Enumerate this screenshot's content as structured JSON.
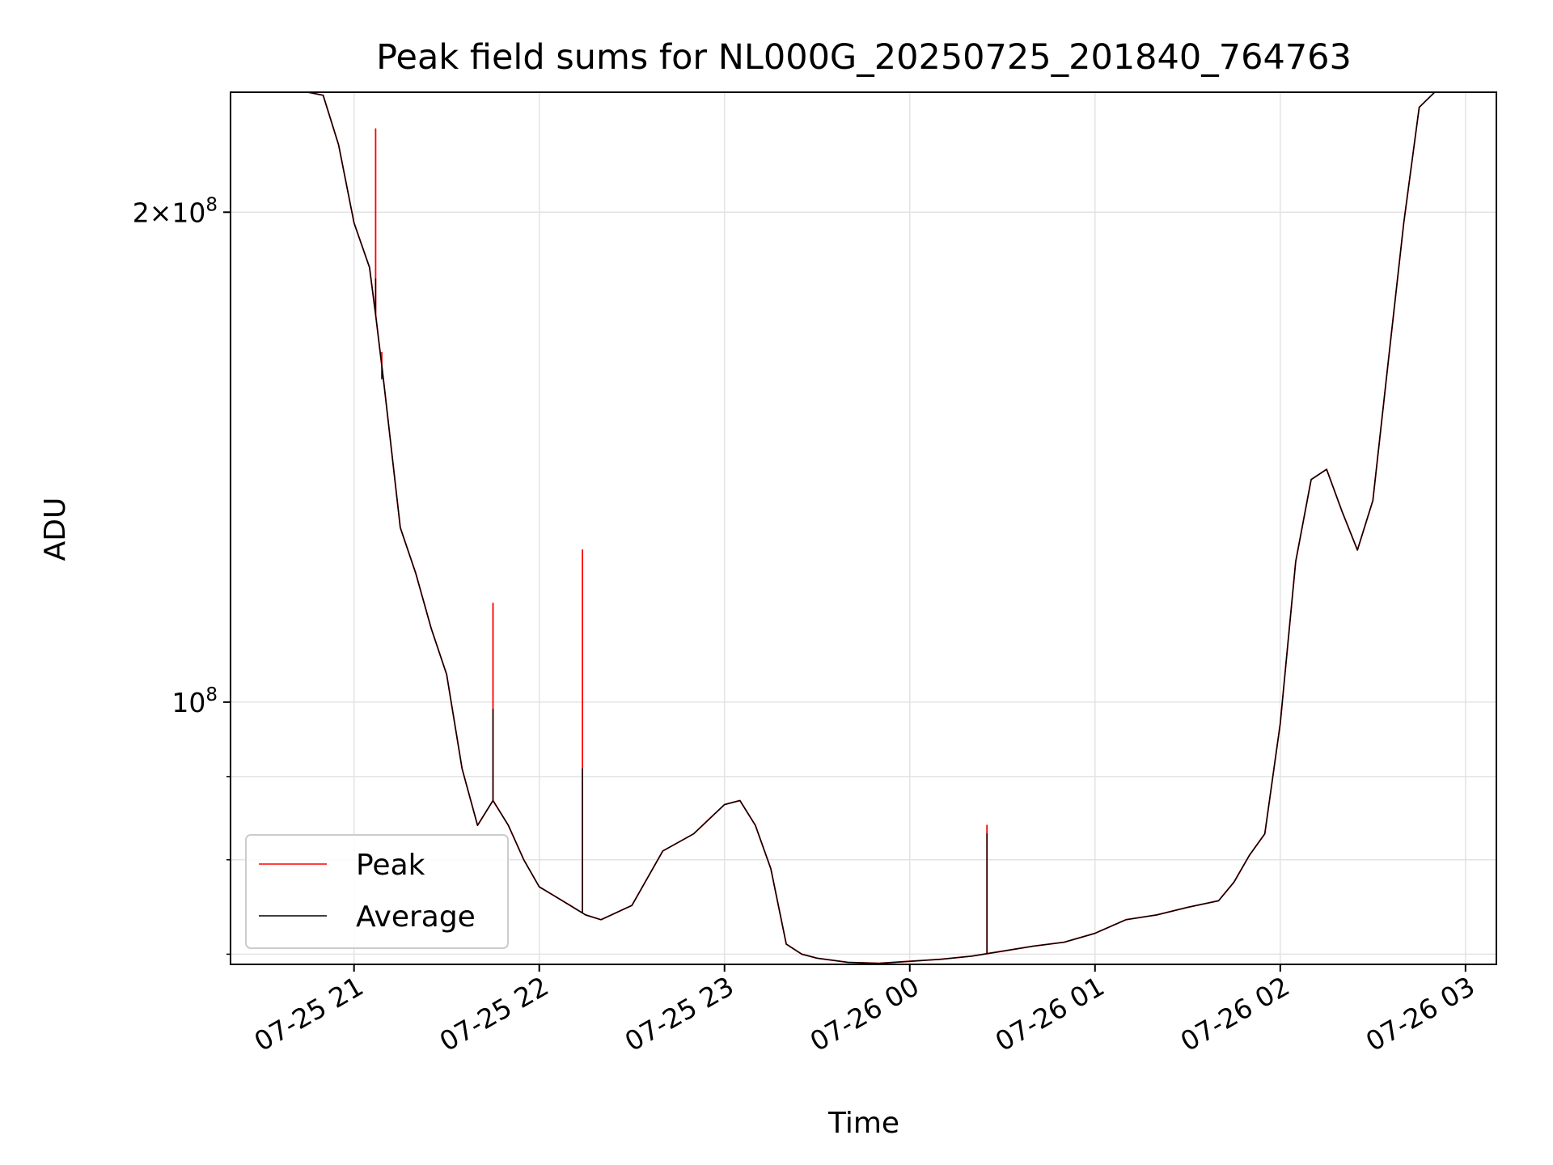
{
  "chart_data": {
    "type": "line",
    "title": "Peak field sums for NL000G_20250725_201840_764763",
    "xlabel": "Time",
    "ylabel": "ADU",
    "y_scale": "log",
    "xlim": [
      "2025-07-25T20:20",
      "2025-07-26T03:10"
    ],
    "ylim": [
      69000000,
      237000000
    ],
    "grid": true,
    "legend_position": "lower-left",
    "x_ticks": [
      {
        "value": "2025-07-25T21:00",
        "label": "07-25 21"
      },
      {
        "value": "2025-07-25T22:00",
        "label": "07-25 22"
      },
      {
        "value": "2025-07-25T23:00",
        "label": "07-25 23"
      },
      {
        "value": "2025-07-26T00:00",
        "label": "07-26 00"
      },
      {
        "value": "2025-07-26T01:00",
        "label": "07-26 01"
      },
      {
        "value": "2025-07-26T02:00",
        "label": "07-26 02"
      },
      {
        "value": "2025-07-26T03:00",
        "label": "07-26 03"
      }
    ],
    "y_ticks": [
      {
        "value": 200000000,
        "mantissa": "2",
        "times": "×",
        "base": "10",
        "exponent": "8"
      },
      {
        "value": 100000000,
        "mantissa": "",
        "times": "",
        "base": "10",
        "exponent": "8"
      }
    ],
    "y_minor_ticks": [
      70000000,
      80000000,
      90000000
    ],
    "x": [
      "2025-07-25T20:45",
      "2025-07-25T20:50",
      "2025-07-25T20:55",
      "2025-07-25T21:00",
      "2025-07-25T21:05",
      "2025-07-25T21:10",
      "2025-07-25T21:15",
      "2025-07-25T21:20",
      "2025-07-25T21:25",
      "2025-07-25T21:30",
      "2025-07-25T21:35",
      "2025-07-25T21:40",
      "2025-07-25T21:45",
      "2025-07-25T21:50",
      "2025-07-25T21:55",
      "2025-07-25T22:00",
      "2025-07-25T22:05",
      "2025-07-25T22:10",
      "2025-07-25T22:15",
      "2025-07-25T22:20",
      "2025-07-25T22:30",
      "2025-07-25T22:40",
      "2025-07-25T22:50",
      "2025-07-25T23:00",
      "2025-07-25T23:05",
      "2025-07-25T23:10",
      "2025-07-25T23:15",
      "2025-07-25T23:20",
      "2025-07-25T23:25",
      "2025-07-25T23:30",
      "2025-07-25T23:40",
      "2025-07-25T23:50",
      "2025-07-26T00:00",
      "2025-07-26T00:10",
      "2025-07-26T00:20",
      "2025-07-26T00:30",
      "2025-07-26T00:40",
      "2025-07-26T00:50",
      "2025-07-26T01:00",
      "2025-07-26T01:10",
      "2025-07-26T01:20",
      "2025-07-26T01:30",
      "2025-07-26T01:40",
      "2025-07-26T01:45",
      "2025-07-26T01:50",
      "2025-07-26T01:55",
      "2025-07-26T02:00",
      "2025-07-26T02:05",
      "2025-07-26T02:10",
      "2025-07-26T02:15",
      "2025-07-26T02:20",
      "2025-07-26T02:25",
      "2025-07-26T02:30",
      "2025-07-26T02:35",
      "2025-07-26T02:40",
      "2025-07-26T02:45",
      "2025-07-26T02:50",
      "2025-07-26T02:55",
      "2025-07-26T03:00"
    ],
    "series": [
      {
        "name": "Peak",
        "color": "#ff0000",
        "values": [
          237000000,
          236000000,
          220000000,
          197000000,
          185000000,
          155000000,
          128000000,
          120000000,
          111000000,
          104000000,
          91000000,
          84000000,
          87000000,
          84000000,
          80000000,
          77000000,
          76000000,
          75000000,
          74000000,
          73500000,
          75000000,
          81000000,
          83000000,
          86500000,
          87000000,
          84000000,
          79000000,
          71000000,
          70000000,
          69600000,
          69200000,
          69100000,
          69300000,
          69500000,
          69800000,
          70300000,
          70800000,
          71200000,
          72100000,
          73500000,
          74000000,
          74800000,
          75500000,
          77500000,
          80500000,
          83000000,
          97000000,
          122000000,
          137000000,
          139000000,
          131000000,
          124000000,
          133000000,
          162000000,
          197000000,
          232000000,
          237000000,
          237000000,
          237000000
        ],
        "spikes": [
          {
            "x": "2025-07-25T21:07",
            "y": 225000000
          },
          {
            "x": "2025-07-25T21:09",
            "y": 164000000
          },
          {
            "x": "2025-07-25T21:45",
            "y": 115000000
          },
          {
            "x": "2025-07-25T22:14",
            "y": 124000000
          },
          {
            "x": "2025-07-26T00:25",
            "y": 84000000
          }
        ]
      },
      {
        "name": "Average",
        "color": "#000000",
        "values": [
          237000000,
          236000000,
          220000000,
          197000000,
          185000000,
          155000000,
          128000000,
          120000000,
          111000000,
          104000000,
          91000000,
          84000000,
          87000000,
          84000000,
          80000000,
          77000000,
          76000000,
          75000000,
          74000000,
          73500000,
          75000000,
          81000000,
          83000000,
          86500000,
          87000000,
          84000000,
          79000000,
          71000000,
          70000000,
          69600000,
          69200000,
          69100000,
          69300000,
          69500000,
          69800000,
          70300000,
          70800000,
          71200000,
          72100000,
          73500000,
          74000000,
          74800000,
          75500000,
          77500000,
          80500000,
          83000000,
          97000000,
          122000000,
          137000000,
          139000000,
          131000000,
          124000000,
          133000000,
          162000000,
          197000000,
          232000000,
          237000000,
          237000000,
          237000000
        ],
        "spikes": [
          {
            "x": "2025-07-25T21:07",
            "y": 182000000
          },
          {
            "x": "2025-07-25T21:09",
            "y": 158000000
          },
          {
            "x": "2025-07-25T21:45",
            "y": 99000000
          },
          {
            "x": "2025-07-25T22:14",
            "y": 91000000
          },
          {
            "x": "2025-07-26T00:25",
            "y": 83000000
          }
        ]
      }
    ],
    "legend": [
      {
        "label": "Peak",
        "color": "#ff0000"
      },
      {
        "label": "Average",
        "color": "#000000"
      }
    ]
  }
}
